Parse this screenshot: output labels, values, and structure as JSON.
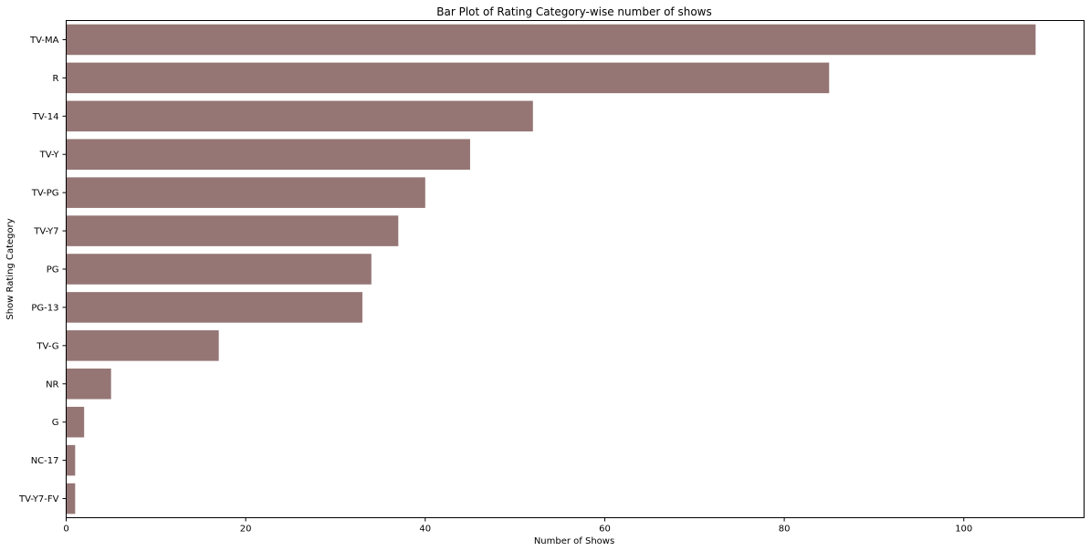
{
  "chart_data": {
    "type": "bar",
    "orientation": "horizontal",
    "title": "Bar Plot of Rating Category-wise number of shows",
    "xlabel": "Number of Shows",
    "ylabel": "Show Rating Category",
    "categories": [
      "TV-MA",
      "R",
      "TV-14",
      "TV-Y",
      "TV-PG",
      "TV-Y7",
      "PG",
      "PG-13",
      "TV-G",
      "NR",
      "G",
      "NC-17",
      "TV-Y7-FV"
    ],
    "values": [
      108,
      85,
      52,
      45,
      40,
      37,
      34,
      33,
      17,
      5,
      2,
      1,
      1
    ],
    "xlim": [
      0,
      113.4
    ],
    "xticks": [
      0,
      20,
      40,
      60,
      80,
      100
    ],
    "bar_color": "#957675",
    "grid": false,
    "legend": "none"
  }
}
